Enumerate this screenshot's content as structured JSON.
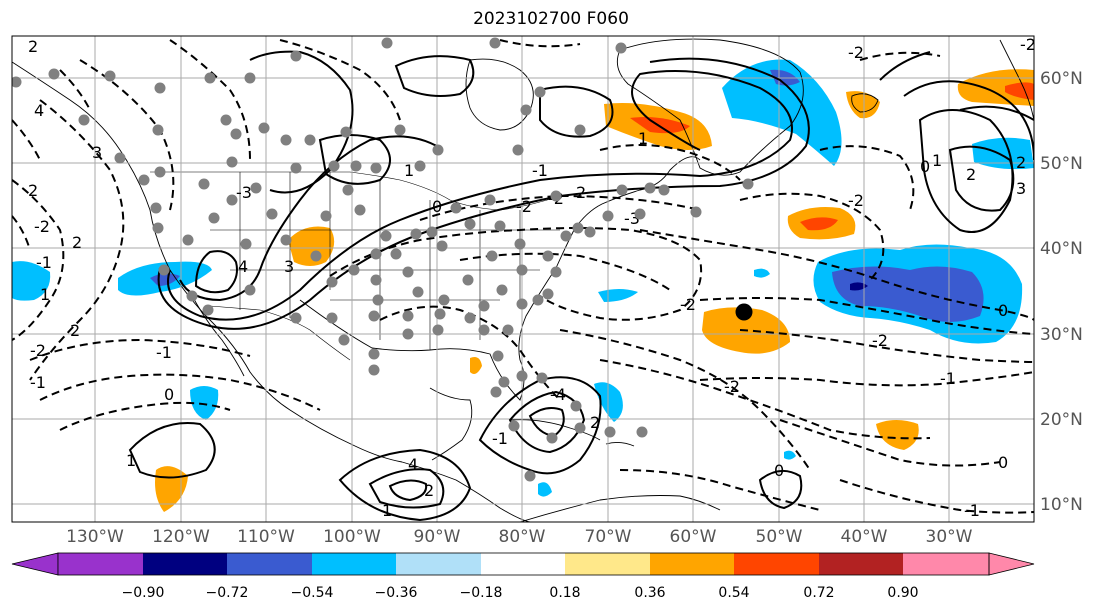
{
  "title": "2023102700 F060",
  "lon_labels": [
    "130°W",
    "120°W",
    "110°W",
    "100°W",
    "90°W",
    "80°W",
    "70°W",
    "60°W",
    "50°W",
    "40°W",
    "30°W"
  ],
  "lat_labels": [
    "60°N",
    "50°N",
    "40°N",
    "30°N",
    "20°N",
    "10°N"
  ],
  "colorbar": {
    "ticks": [
      "−0.90",
      "−0.72",
      "−0.54",
      "−0.36",
      "−0.18",
      "0.18",
      "0.36",
      "0.54",
      "0.72",
      "0.90"
    ],
    "colors": [
      "#9932cc",
      "#000080",
      "#3a5bd0",
      "#00bfff",
      "#b0e0f8",
      "#ffffff",
      "#ffe88a",
      "#ffa500",
      "#ff4500",
      "#b22222",
      "#ff88aa"
    ]
  },
  "contour_labels": [
    "2",
    "4",
    "3",
    "2",
    "1",
    "-1",
    "0",
    "-2",
    "-1",
    "1",
    "2",
    "-2",
    "-1",
    "2",
    "-3",
    "4",
    "3",
    "1",
    "2",
    "-2",
    "-1",
    "0",
    "-2",
    "-3",
    "-4",
    "-2",
    "-2",
    "-1",
    "0",
    "1",
    "-2",
    "2",
    "3",
    "2",
    "1",
    "0",
    "-2",
    "0",
    "-1",
    "2",
    "4",
    "1",
    "-2",
    "0",
    "-1",
    "-2",
    "2"
  ],
  "colors": {
    "contour": "#000000",
    "grid": "#aaaaaa",
    "stations": "#808080",
    "marker": "#000000"
  }
}
